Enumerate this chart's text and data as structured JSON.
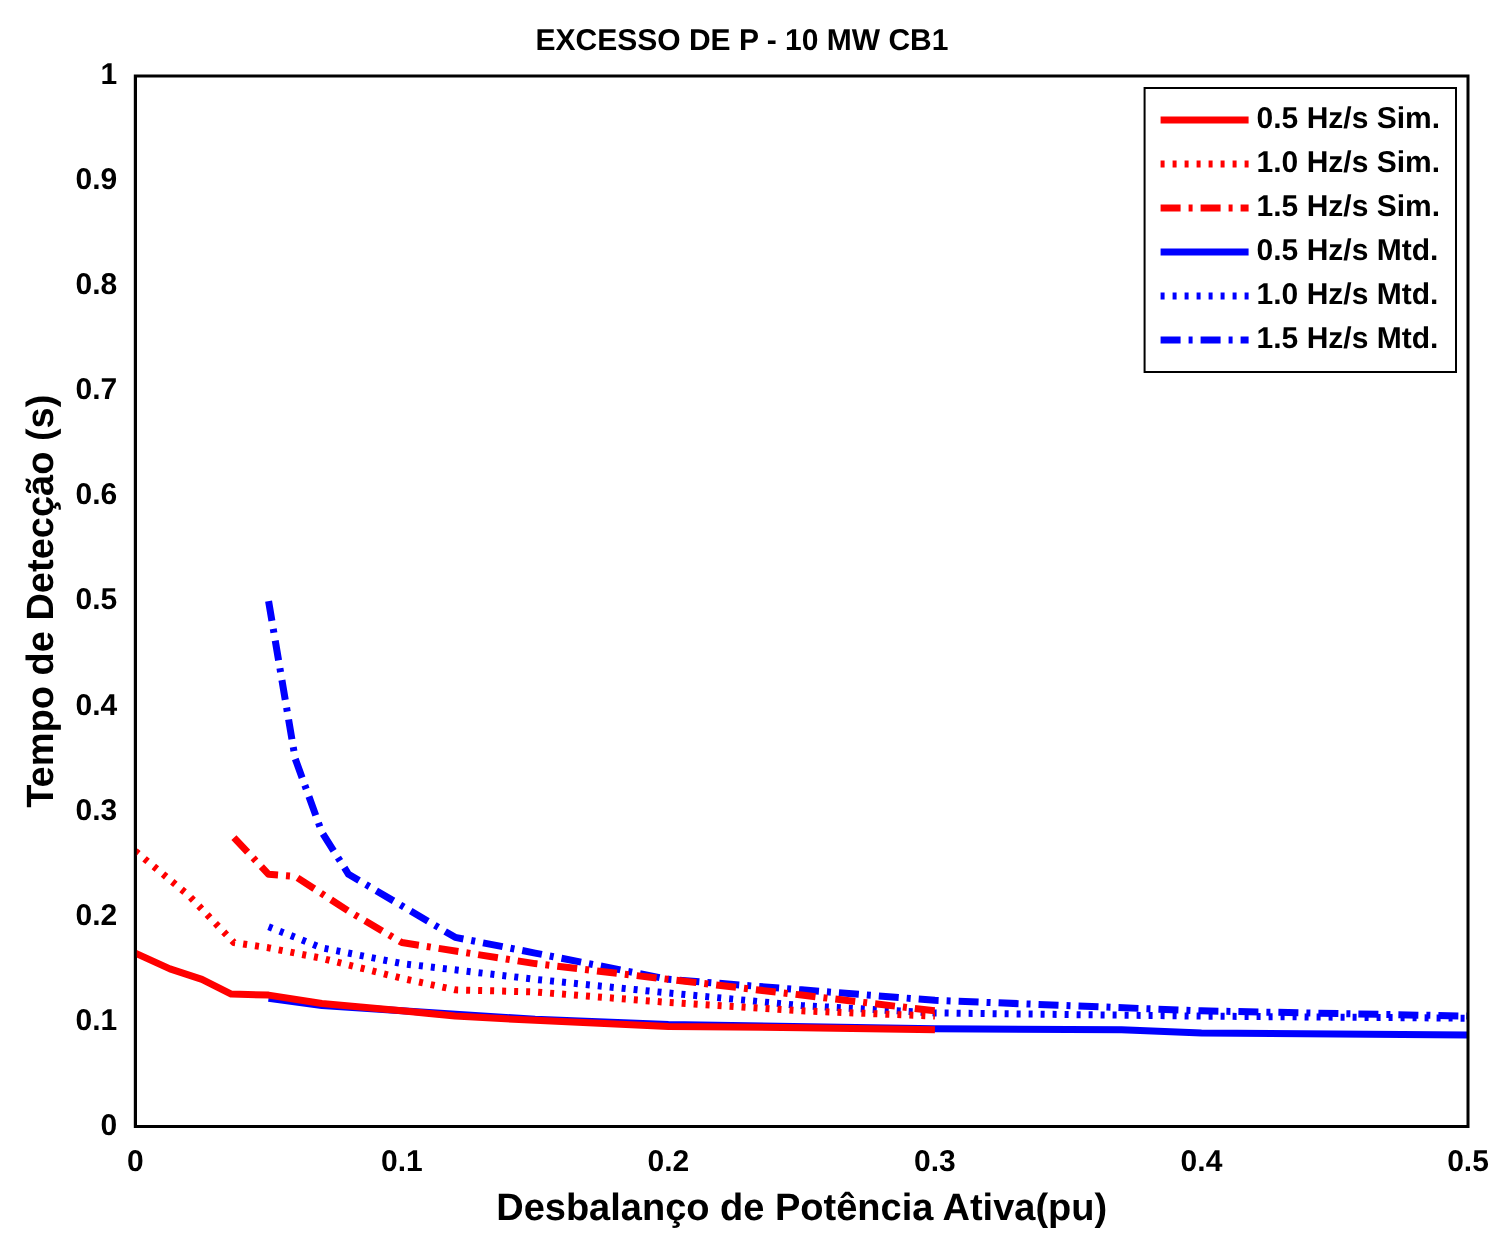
{
  "chart_data": {
    "type": "line",
    "title": "EXCESSO DE P - 10 MW CB1",
    "xlabel": "Desbalanço de Potência Ativa(pu)",
    "ylabel": "Tempo de Detecção (s)",
    "xlim": [
      0,
      0.5
    ],
    "xticks": [
      0,
      0.1,
      0.2,
      0.3,
      0.4,
      0.5
    ],
    "ylim": [
      0,
      1
    ],
    "yticks": [
      0,
      0.1,
      0.2,
      0.3,
      0.4,
      0.5,
      0.6,
      0.7,
      0.8,
      0.9,
      1
    ],
    "grid": false,
    "legend": "top right",
    "marker": "none",
    "series": [
      {
        "name": "0.5 Hz/s Sim.",
        "color": "#ff0000",
        "line_style": "solid",
        "x": [
          0,
          0.013,
          0.025,
          0.036,
          0.05,
          0.07,
          0.1,
          0.12,
          0.15,
          0.2,
          0.25,
          0.3
        ],
        "values": [
          0.165,
          0.15,
          0.14,
          0.126,
          0.125,
          0.117,
          0.11,
          0.105,
          0.101,
          0.095,
          0.094,
          0.092
        ]
      },
      {
        "name": "1.0 Hz/s Sim.",
        "color": "#ff0000",
        "line_style": "dotted",
        "x": [
          0,
          0.02,
          0.037,
          0.05,
          0.07,
          0.1,
          0.12,
          0.15,
          0.2,
          0.25,
          0.3
        ],
        "values": [
          0.262,
          0.22,
          0.175,
          0.17,
          0.16,
          0.141,
          0.13,
          0.128,
          0.118,
          0.11,
          0.105
        ]
      },
      {
        "name": "1.5 Hz/s Sim.",
        "color": "#ff0000",
        "line_style": "dashed",
        "x": [
          0.037,
          0.05,
          0.06,
          0.08,
          0.1,
          0.15,
          0.2,
          0.25,
          0.3
        ],
        "values": [
          0.275,
          0.24,
          0.238,
          0.205,
          0.175,
          0.155,
          0.14,
          0.125,
          0.11
        ]
      },
      {
        "name": "0.5 Hz/s Mtd.",
        "color": "#0000ff",
        "line_style": "solid",
        "x": [
          0.05,
          0.07,
          0.1,
          0.15,
          0.2,
          0.3,
          0.37,
          0.4,
          0.5
        ],
        "values": [
          0.122,
          0.115,
          0.11,
          0.102,
          0.097,
          0.093,
          0.092,
          0.089,
          0.087
        ]
      },
      {
        "name": "1.0 Hz/s Mtd.",
        "color": "#0000ff",
        "line_style": "dotted",
        "x": [
          0.05,
          0.07,
          0.1,
          0.15,
          0.2,
          0.25,
          0.3,
          0.4,
          0.5
        ],
        "values": [
          0.19,
          0.17,
          0.155,
          0.14,
          0.127,
          0.115,
          0.108,
          0.105,
          0.103
        ]
      },
      {
        "name": "1.5 Hz/s Mtd.",
        "color": "#0000ff",
        "line_style": "dashed",
        "x": [
          0.05,
          0.06,
          0.07,
          0.08,
          0.1,
          0.12,
          0.15,
          0.2,
          0.25,
          0.3,
          0.4,
          0.5
        ],
        "values": [
          0.5,
          0.35,
          0.28,
          0.24,
          0.21,
          0.18,
          0.165,
          0.14,
          0.13,
          0.12,
          0.11,
          0.105
        ]
      }
    ]
  }
}
